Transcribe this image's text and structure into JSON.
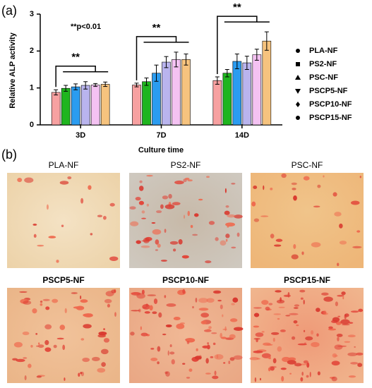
{
  "panel_a_label": "(a)",
  "panel_b_label": "(b)",
  "chart_data": {
    "type": "bar",
    "ylabel": "Relative ALP activity",
    "xlabel": "Culture time",
    "categories": [
      "3D",
      "7D",
      "14D"
    ],
    "ylim": [
      0,
      3
    ],
    "yticks": [
      0,
      1,
      2,
      3
    ],
    "significance_note": "**p<0.01",
    "annotations": [
      "**",
      "**",
      "**"
    ],
    "series": [
      {
        "name": "PLA-NF",
        "color": "#f7a1a1",
        "marker": "circle",
        "values": [
          0.88,
          1.08,
          1.2
        ],
        "errors": [
          0.07,
          0.05,
          0.1
        ]
      },
      {
        "name": "PS2-NF",
        "color": "#1fb51f",
        "marker": "square",
        "values": [
          0.99,
          1.17,
          1.4
        ],
        "errors": [
          0.08,
          0.1,
          0.1
        ]
      },
      {
        "name": "PSC-NF",
        "color": "#2b9cf0",
        "marker": "triangle",
        "values": [
          1.03,
          1.4,
          1.72
        ],
        "errors": [
          0.08,
          0.22,
          0.2
        ]
      },
      {
        "name": "PSCP5-NF",
        "color": "#b9b4ee",
        "marker": "triangle-down",
        "values": [
          1.07,
          1.7,
          1.68
        ],
        "errors": [
          0.1,
          0.15,
          0.18
        ]
      },
      {
        "name": "PSCP10-NF",
        "color": "#f4c2f2",
        "marker": "diamond",
        "values": [
          1.08,
          1.77,
          1.9
        ],
        "errors": [
          0.04,
          0.2,
          0.15
        ]
      },
      {
        "name": "PSCP15-NF",
        "color": "#f6c37e",
        "marker": "circle",
        "values": [
          1.1,
          1.77,
          2.27
        ],
        "errors": [
          0.06,
          0.15,
          0.25
        ]
      }
    ]
  },
  "images": [
    {
      "title": "PLA-NF"
    },
    {
      "title": "PS2-NF"
    },
    {
      "title": "PSC-NF"
    },
    {
      "title": "PSCP5-NF"
    },
    {
      "title": "PSCP10-NF"
    },
    {
      "title": "PSCP15-NF"
    }
  ]
}
